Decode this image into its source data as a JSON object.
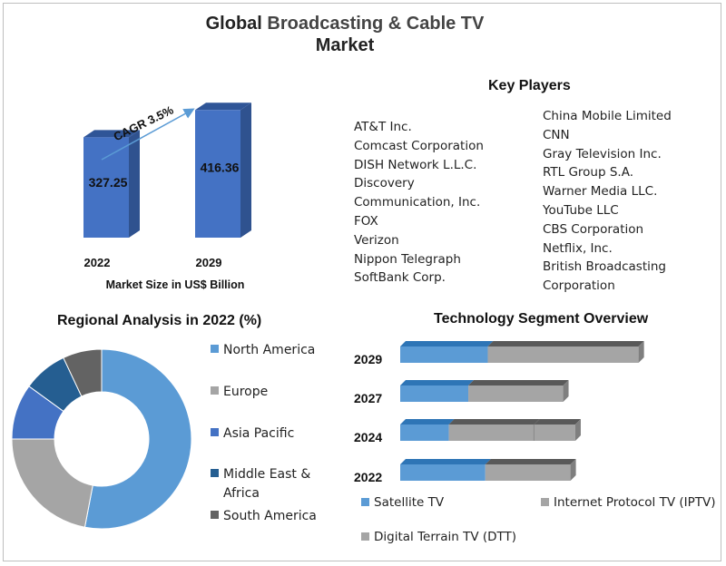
{
  "title_line1_a": "Global",
  "title_line1_b": "Broadcasting & Cable TV",
  "title_line2": "Market",
  "key_players": {
    "heading": "Key Players",
    "left": [
      "AT&T Inc.",
      "Comcast Corporation",
      "DISH Network L.L.C.",
      "Discovery",
      "Communication, Inc.",
      "FOX",
      "Verizon",
      "Nippon Telegraph",
      "SoftBank Corp."
    ],
    "right": [
      "China Mobile Limited",
      "CNN",
      "Gray Television Inc.",
      "RTL Group S.A.",
      "Warner Media LLC.",
      "YouTube LLC",
      "CBS Corporation",
      "Netflix, Inc.",
      "British Broadcasting",
      "Corporation"
    ]
  },
  "colors": {
    "bar_front": "#4472c4",
    "bar_side": "#2f528f",
    "bar_top": "#2f5597",
    "north_america": "#5b9bd5",
    "europe": "#a5a5a5",
    "asia_pacific": "#4472c4",
    "middle_east_africa": "#255e91",
    "south_america": "#636363",
    "satellite": "#5b9bd5",
    "iptv": "#a5a5a5",
    "dtt": "#a5a5a5"
  },
  "chart_data": [
    {
      "type": "bar",
      "categories": [
        "2022",
        "2029"
      ],
      "values": [
        327.25,
        416.36
      ],
      "value_labels": [
        "327.25",
        "416.36"
      ],
      "xlabel": "Market Size in US$ Billion",
      "annotation": "CAGR 3.5%"
    },
    {
      "type": "pie",
      "title": "Regional Analysis in 2022 (%)",
      "labels": [
        "North America",
        "Europe",
        "Asia Pacific",
        "Middle East & Africa",
        "South America"
      ],
      "legend_lines": [
        [
          "North America"
        ],
        [
          "Europe"
        ],
        [
          "Asia Pacific"
        ],
        [
          "Middle East &",
          "Africa"
        ],
        [
          "South America"
        ]
      ],
      "values": [
        53,
        22,
        10,
        8,
        7
      ],
      "legend": "right"
    },
    {
      "type": "bar",
      "orientation": "horizontal",
      "stacked": true,
      "title": "Technology  Segment Overview",
      "categories": [
        "2029",
        "2027",
        "2024",
        "2022"
      ],
      "series": [
        {
          "name": "Satellite TV",
          "values": [
            36,
            28,
            20,
            35
          ]
        },
        {
          "name": "Internet Protocol TV (IPTV)",
          "values": [
            62,
            39,
            35,
            35
          ]
        },
        {
          "name": "Digital Terrain TV (DTT)",
          "values": [
            0,
            0,
            17,
            0
          ]
        }
      ]
    }
  ]
}
